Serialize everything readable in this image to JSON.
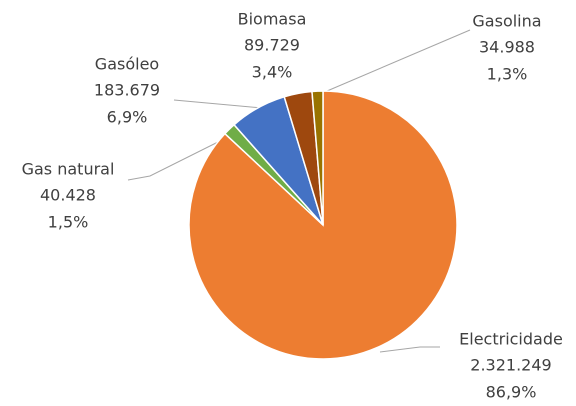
{
  "chart_data": {
    "type": "pie",
    "categories": [
      "Electricidade",
      "Gas natural",
      "Gasóleo",
      "Biomasa",
      "Gasolina"
    ],
    "values": [
      2321249,
      40428,
      183679,
      89729,
      34988
    ],
    "value_labels": [
      "2.321.249",
      "40.428",
      "183.679",
      "89.729",
      "34.988"
    ],
    "percents": [
      86.9,
      1.5,
      6.9,
      3.4,
      1.3
    ],
    "percent_labels": [
      "86,9%",
      "1,5%",
      "6,9%",
      "3,4%",
      "1,3%"
    ],
    "colors": [
      "#ED7D31",
      "#70AD47",
      "#4472C4",
      "#9E480E",
      "#997300"
    ]
  }
}
